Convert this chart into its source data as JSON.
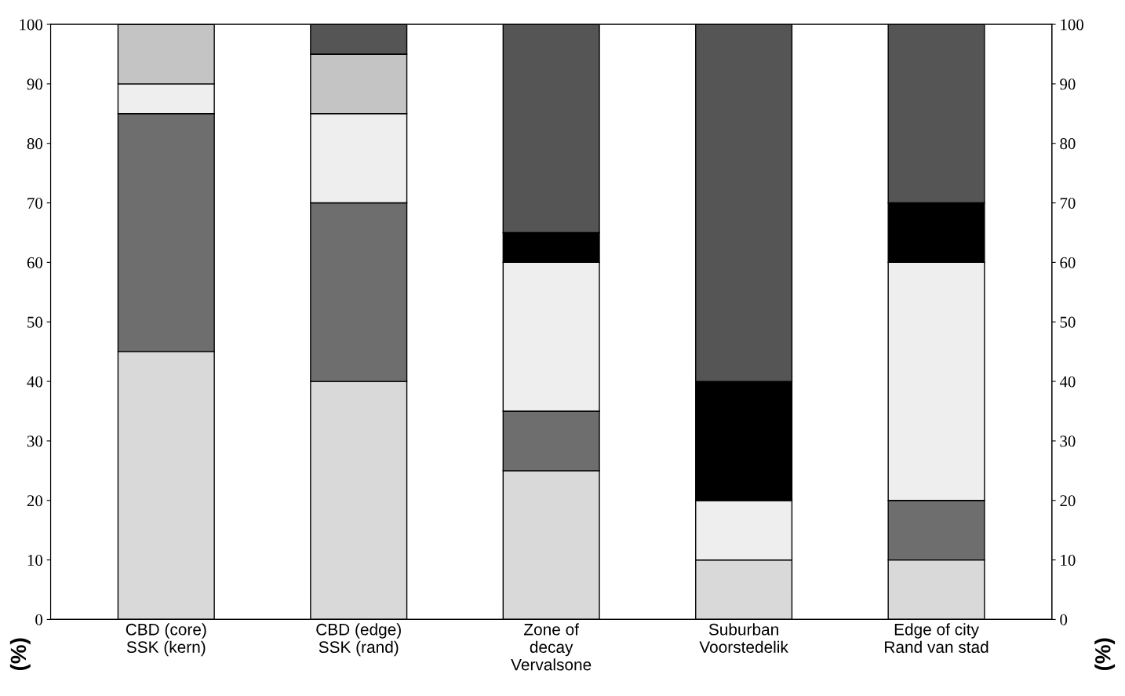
{
  "chart_data": {
    "type": "bar",
    "stacked": true,
    "categories": [
      "CBD (core)\nSSK (kern)",
      "CBD (edge)\nSSK (rand)",
      "Zone of\ndecay\nVervalsone",
      "Suburban\nVoorstedelik",
      "Edge of city\nRand van stad"
    ],
    "series": [
      {
        "color": "#d9d9d9",
        "values": [
          45,
          40,
          25,
          10,
          10
        ]
      },
      {
        "color": "#6e6e6e",
        "values": [
          40,
          30,
          10,
          0,
          10
        ]
      },
      {
        "color": "#eeeeee",
        "values": [
          5,
          15,
          25,
          10,
          40
        ]
      },
      {
        "color": "#c4c4c4",
        "values": [
          10,
          10,
          0,
          0,
          0
        ]
      },
      {
        "color": "#000000",
        "values": [
          0,
          0,
          5,
          20,
          10
        ]
      },
      {
        "color": "#555555",
        "values": [
          0,
          5,
          35,
          60,
          30
        ]
      }
    ],
    "ylabel": "(%)",
    "y2label": "(%)",
    "ylim": [
      0,
      100
    ],
    "yticks": [
      0,
      10,
      20,
      30,
      40,
      50,
      60,
      70,
      80,
      90,
      100
    ],
    "y2lim": [
      0,
      100
    ],
    "y2ticks": [
      0,
      10,
      20,
      30,
      40,
      50,
      60,
      70,
      80,
      90,
      100
    ],
    "grid": false
  }
}
